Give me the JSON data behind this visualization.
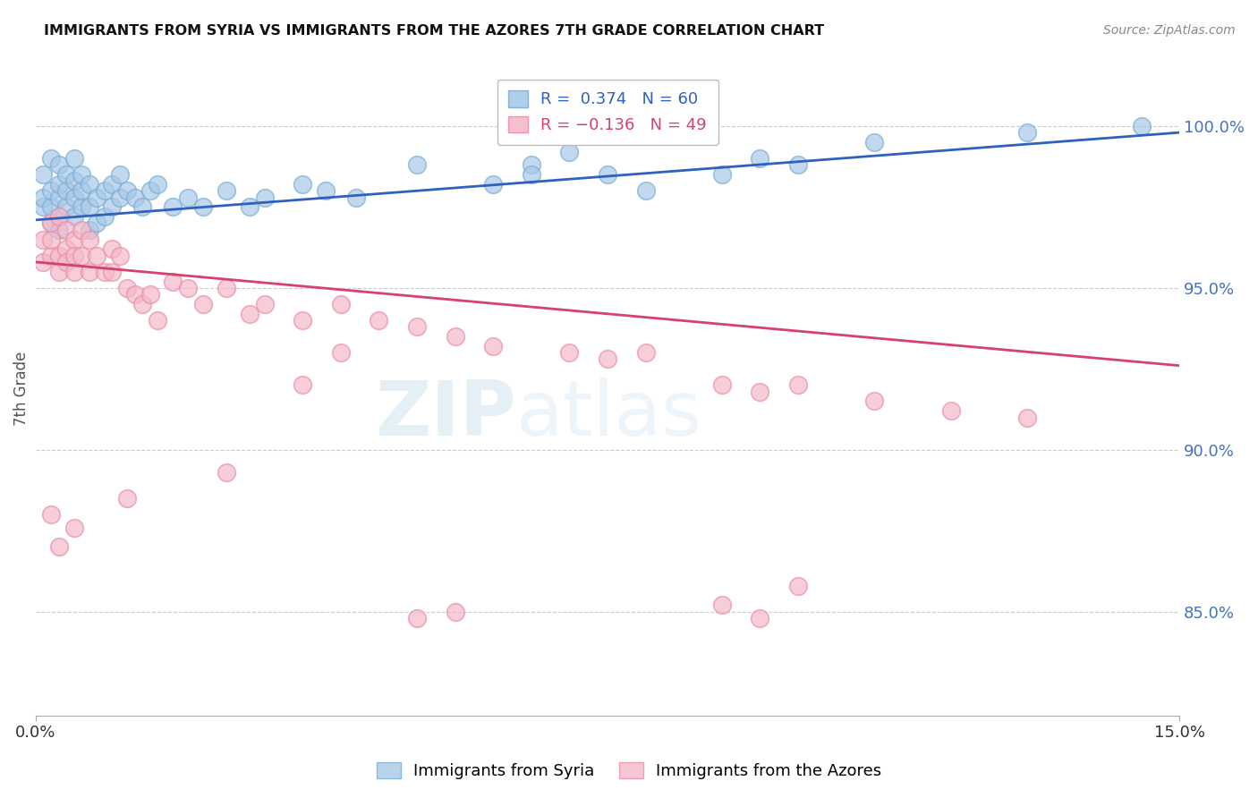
{
  "title": "IMMIGRANTS FROM SYRIA VS IMMIGRANTS FROM THE AZORES 7TH GRADE CORRELATION CHART",
  "source": "Source: ZipAtlas.com",
  "ylabel": "7th Grade",
  "yaxis_labels": [
    "100.0%",
    "95.0%",
    "90.0%",
    "85.0%"
  ],
  "yaxis_values": [
    1.0,
    0.95,
    0.9,
    0.85
  ],
  "xmin": 0.0,
  "xmax": 0.15,
  "ymin": 0.818,
  "ymax": 1.02,
  "legend_blue": "R =  0.374   N = 60",
  "legend_pink": "R = −0.136   N = 49",
  "blue_color": "#a8c8e8",
  "pink_color": "#f4b8c8",
  "blue_edge": "#7aafd4",
  "pink_edge": "#e890a8",
  "line_blue": "#3060c0",
  "line_pink": "#d84070",
  "syria_x": [
    0.001,
    0.001,
    0.001,
    0.002,
    0.002,
    0.002,
    0.002,
    0.003,
    0.003,
    0.003,
    0.003,
    0.003,
    0.004,
    0.004,
    0.004,
    0.005,
    0.005,
    0.005,
    0.005,
    0.006,
    0.006,
    0.006,
    0.007,
    0.007,
    0.007,
    0.008,
    0.008,
    0.009,
    0.009,
    0.01,
    0.01,
    0.011,
    0.011,
    0.012,
    0.013,
    0.014,
    0.015,
    0.016,
    0.018,
    0.02,
    0.022,
    0.025,
    0.028,
    0.03,
    0.035,
    0.038,
    0.042,
    0.05,
    0.06,
    0.065,
    0.065,
    0.07,
    0.075,
    0.08,
    0.09,
    0.095,
    0.1,
    0.11,
    0.13,
    0.145
  ],
  "syria_y": [
    0.975,
    0.978,
    0.985,
    0.97,
    0.975,
    0.98,
    0.99,
    0.968,
    0.972,
    0.978,
    0.982,
    0.988,
    0.975,
    0.98,
    0.985,
    0.972,
    0.978,
    0.983,
    0.99,
    0.975,
    0.98,
    0.985,
    0.968,
    0.975,
    0.982,
    0.97,
    0.978,
    0.972,
    0.98,
    0.975,
    0.982,
    0.978,
    0.985,
    0.98,
    0.978,
    0.975,
    0.98,
    0.982,
    0.975,
    0.978,
    0.975,
    0.98,
    0.975,
    0.978,
    0.982,
    0.98,
    0.978,
    0.988,
    0.982,
    0.988,
    0.985,
    0.992,
    0.985,
    0.98,
    0.985,
    0.99,
    0.988,
    0.995,
    0.998,
    1.0
  ],
  "azores_x": [
    0.001,
    0.001,
    0.002,
    0.002,
    0.002,
    0.003,
    0.003,
    0.003,
    0.004,
    0.004,
    0.004,
    0.005,
    0.005,
    0.005,
    0.006,
    0.006,
    0.007,
    0.007,
    0.008,
    0.009,
    0.01,
    0.01,
    0.011,
    0.012,
    0.013,
    0.014,
    0.015,
    0.016,
    0.018,
    0.02,
    0.022,
    0.025,
    0.028,
    0.03,
    0.035,
    0.04,
    0.045,
    0.05,
    0.055,
    0.06,
    0.07,
    0.075,
    0.08,
    0.09,
    0.095,
    0.1,
    0.11,
    0.12,
    0.13
  ],
  "azores_y": [
    0.965,
    0.958,
    0.97,
    0.96,
    0.965,
    0.972,
    0.96,
    0.955,
    0.968,
    0.962,
    0.958,
    0.965,
    0.96,
    0.955,
    0.968,
    0.96,
    0.965,
    0.955,
    0.96,
    0.955,
    0.962,
    0.955,
    0.96,
    0.95,
    0.948,
    0.945,
    0.948,
    0.94,
    0.952,
    0.95,
    0.945,
    0.95,
    0.942,
    0.945,
    0.94,
    0.945,
    0.94,
    0.938,
    0.935,
    0.932,
    0.93,
    0.928,
    0.93,
    0.92,
    0.918,
    0.92,
    0.915,
    0.912,
    0.91
  ],
  "azores_outlier_x": [
    0.002,
    0.003,
    0.005,
    0.012,
    0.025,
    0.035,
    0.04,
    0.05,
    0.055,
    0.09,
    0.095,
    0.1
  ],
  "azores_outlier_y": [
    0.88,
    0.87,
    0.876,
    0.885,
    0.893,
    0.92,
    0.93,
    0.848,
    0.85,
    0.852,
    0.848,
    0.858
  ]
}
